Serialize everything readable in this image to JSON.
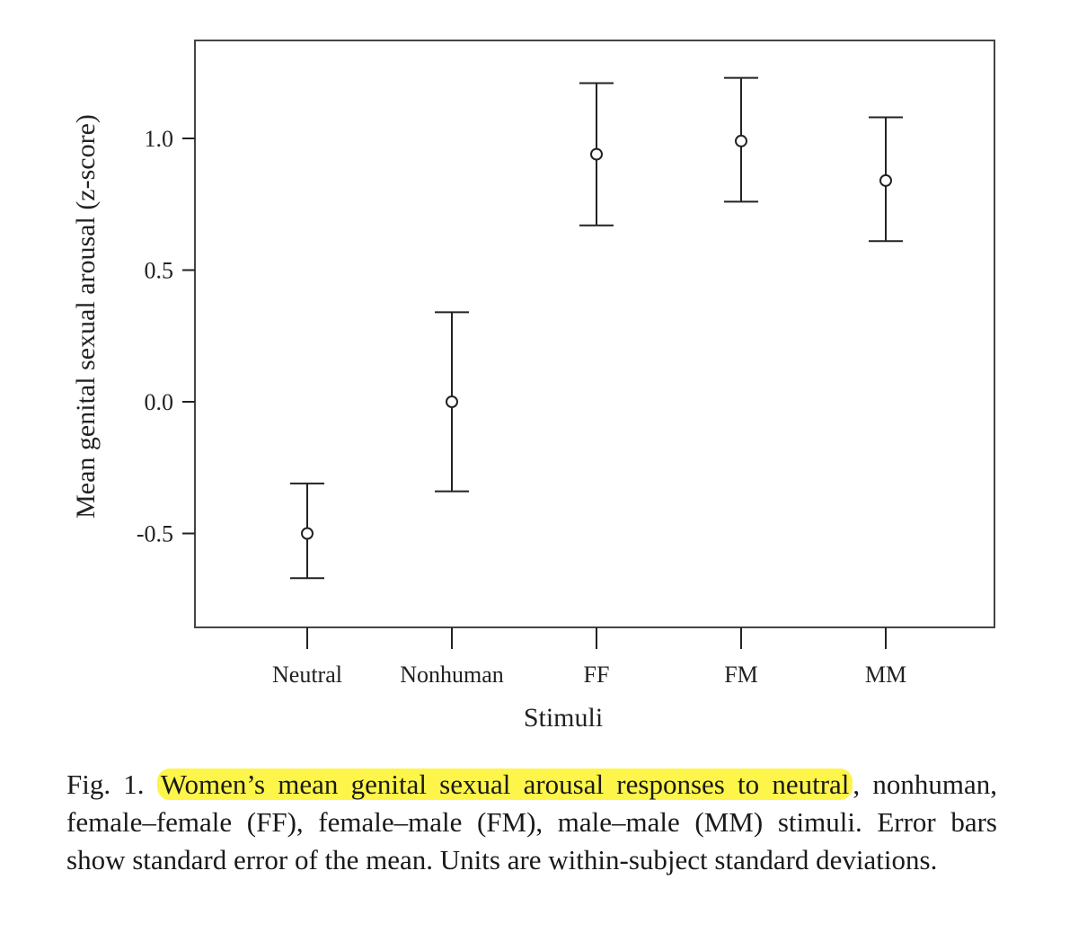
{
  "chart_data": {
    "type": "scatter",
    "title": "",
    "xlabel": "Stimuli",
    "ylabel": "Mean genital sexual arousal (z-score)",
    "categories": [
      "Neutral",
      "Nonhuman",
      "FF",
      "FM",
      "MM"
    ],
    "series": [
      {
        "values": [
          -0.5,
          0.0,
          0.94,
          0.99,
          0.84
        ],
        "error_lower": [
          -0.67,
          -0.34,
          0.67,
          0.76,
          0.61
        ],
        "error_upper": [
          -0.31,
          0.34,
          1.21,
          1.23,
          1.08
        ]
      }
    ],
    "ylim": [
      -0.85,
      1.35
    ],
    "yticks": [
      1.0,
      0.5,
      0.0,
      -0.5
    ],
    "ytick_labels": [
      "1.0",
      "0.5",
      "0.0",
      "-0.5"
    ],
    "grid": false,
    "marker": "open-circle",
    "error_bars": "standard error of the mean"
  },
  "caption": {
    "label": "Fig. 1.",
    "highlighted": "Women’s mean genital sexual arousal responses to neutral",
    "rest": ", nonhuman, female–female (FF), female–male (FM), male–male (MM) stimuli. Error bars show standard error of the mean. Units are within-subject standard deviations."
  },
  "colors": {
    "highlight": "#fdf54a",
    "ink": "#1a1a1a",
    "frame": "#444444"
  }
}
